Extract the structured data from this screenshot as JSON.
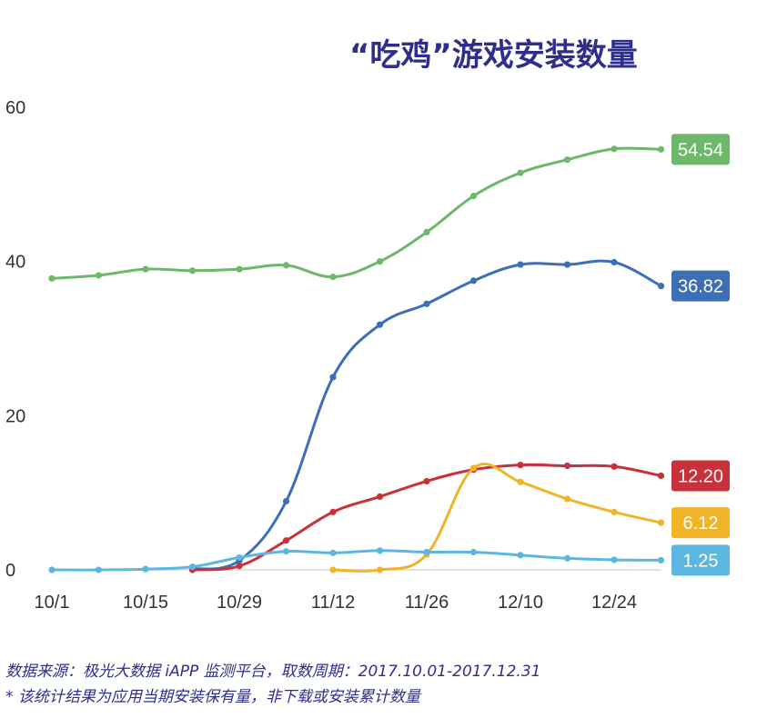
{
  "chart_data": {
    "type": "line",
    "title": "“吃鸡”游戏安装数量",
    "x_ticks": [
      "10/1",
      "10/15",
      "10/29",
      "11/12",
      "11/26",
      "12/10",
      "12/24"
    ],
    "y_ticks": [
      0,
      20,
      40,
      60
    ],
    "ylim": [
      0,
      60
    ],
    "grid": false,
    "x": [
      "10/1",
      "10/8",
      "10/15",
      "10/22",
      "10/29",
      "11/5",
      "11/12",
      "11/19",
      "11/26",
      "12/3",
      "12/10",
      "12/17",
      "12/24",
      "12/31"
    ],
    "series": [
      {
        "color": "#6db86b",
        "end_label": "54.54",
        "values": [
          37.8,
          38.2,
          39.0,
          38.8,
          39.0,
          39.5,
          38.0,
          40.0,
          43.8,
          48.5,
          51.5,
          53.2,
          54.6,
          54.54
        ]
      },
      {
        "color": "#3c6fb6",
        "end_label": "36.82",
        "values": [
          null,
          null,
          null,
          0.1,
          1.2,
          8.9,
          25.0,
          31.8,
          34.5,
          37.5,
          39.6,
          39.6,
          39.9,
          36.82
        ]
      },
      {
        "color": "#c8313a",
        "end_label": "12.20",
        "values": [
          null,
          null,
          null,
          0.0,
          0.5,
          3.8,
          7.5,
          9.5,
          11.5,
          13.0,
          13.6,
          13.5,
          13.4,
          12.2
        ]
      },
      {
        "color": "#f0b429",
        "end_label": "6.12",
        "values": [
          null,
          null,
          null,
          null,
          null,
          null,
          0.0,
          0.0,
          2.0,
          13.2,
          11.4,
          9.2,
          7.5,
          6.12
        ]
      },
      {
        "color": "#5cb7e0",
        "end_label": "1.25",
        "values": [
          0.0,
          0.0,
          0.1,
          0.4,
          1.6,
          2.4,
          2.2,
          2.5,
          2.3,
          2.3,
          1.9,
          1.5,
          1.3,
          1.25
        ]
      }
    ]
  },
  "footnote": {
    "source": "数据来源：极光大数据 iAPP 监测平台，取数周期：2017.10.01-2017.12.31",
    "note": "* 该统计结果为应用当期安装保有量，非下载或安装累计数量"
  }
}
